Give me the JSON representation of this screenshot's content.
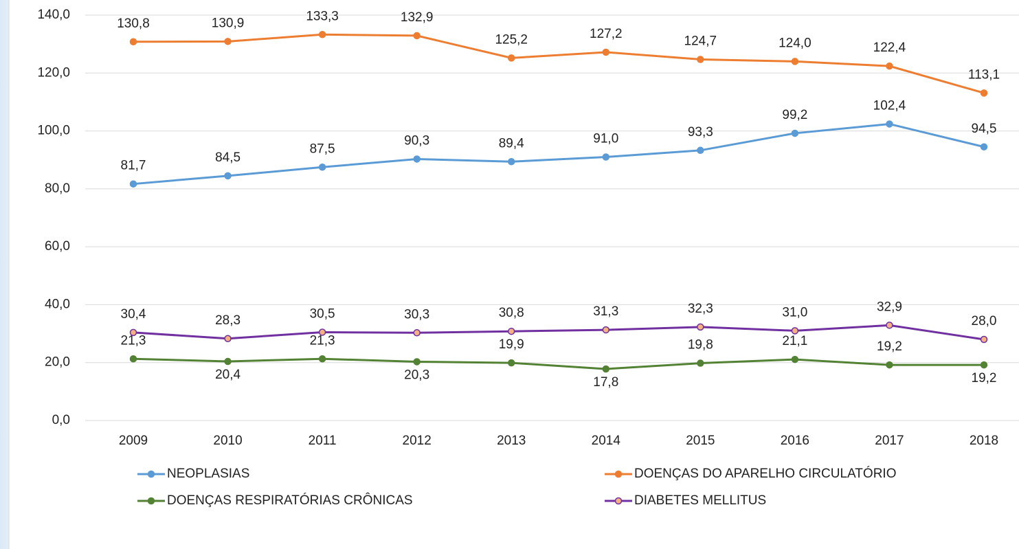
{
  "chart_data": {
    "type": "line",
    "x": [
      "2009",
      "2010",
      "2011",
      "2012",
      "2013",
      "2014",
      "2015",
      "2016",
      "2017",
      "2018"
    ],
    "series": [
      {
        "name": "NEOPLASIAS",
        "color": "#5b9bd5",
        "values": [
          81.7,
          84.5,
          87.5,
          90.3,
          89.4,
          91.0,
          93.3,
          99.2,
          102.4,
          94.5
        ],
        "value_labels": [
          "81,7",
          "84,5",
          "87,5",
          "90,3",
          "89,4",
          "91,0",
          "93,3",
          "99,2",
          "102,4",
          "94,5"
        ]
      },
      {
        "name": "DOENÇAS DO APARELHO CIRCULATÓRIO",
        "color": "#ed7d31",
        "values": [
          130.8,
          130.9,
          133.3,
          132.9,
          125.2,
          127.2,
          124.7,
          124.0,
          122.4,
          113.1
        ],
        "value_labels": [
          "130,8",
          "130,9",
          "133,3",
          "132,9",
          "125,2",
          "127,2",
          "124,7",
          "124,0",
          "122,4",
          "113,1"
        ]
      },
      {
        "name": "DOENÇAS RESPIRATÓRIAS CRÔNICAS",
        "color": "#548235",
        "values": [
          21.3,
          20.4,
          21.3,
          20.3,
          19.9,
          17.8,
          19.8,
          21.1,
          19.2,
          19.2
        ],
        "value_labels": [
          "21,3",
          "20,4",
          "21,3",
          "20,3",
          "19,9",
          "17,8",
          "19,8",
          "21,1",
          "19,2",
          "19,2"
        ]
      },
      {
        "name": "DIABETES MELLITUS",
        "color": "#7030a0",
        "marker_fill": "#f4b183",
        "values": [
          30.4,
          28.3,
          30.5,
          30.3,
          30.8,
          31.3,
          32.3,
          31.0,
          32.9,
          28.0
        ],
        "value_labels": [
          "30,4",
          "28,3",
          "30,5",
          "30,3",
          "30,8",
          "31,3",
          "32,3",
          "31,0",
          "32,9",
          "28,0"
        ]
      }
    ],
    "ylim": [
      0,
      140
    ],
    "yticks": [
      {
        "value": 0,
        "label": "0,0"
      },
      {
        "value": 20,
        "label": "20,0"
      },
      {
        "value": 40,
        "label": "40,0"
      },
      {
        "value": 60,
        "label": "60,0"
      },
      {
        "value": 80,
        "label": "80,0"
      },
      {
        "value": 100,
        "label": "100,0"
      },
      {
        "value": 120,
        "label": "120,0"
      },
      {
        "value": 140,
        "label": "140,0"
      }
    ],
    "grid": true
  }
}
